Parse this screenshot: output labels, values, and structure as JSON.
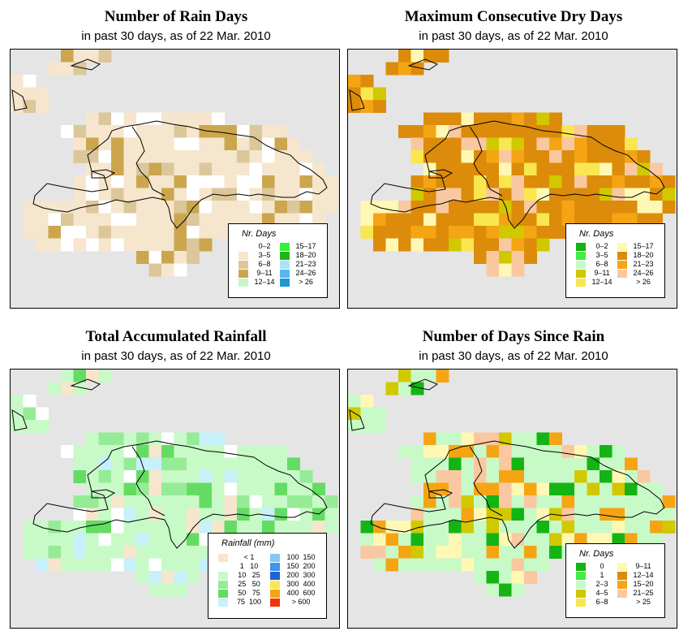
{
  "panels": [
    {
      "id": "rain-days",
      "title": "Number of Rain Days",
      "subtitle": "in past 30 days, as of  22 Mar. 2010",
      "legend": {
        "title": "Nr. Days",
        "columns": [
          [
            {
              "label": "0–2",
              "color": "#ffffff"
            },
            {
              "label": "3–5",
              "color": "#f5e6cd"
            },
            {
              "label": "6–8",
              "color": "#dcc79b"
            },
            {
              "label": "9–11",
              "color": "#cca64e"
            },
            {
              "label": "12–14",
              "color": "#c8f5c8"
            }
          ],
          [
            {
              "label": "15–17",
              "color": "#37f037"
            },
            {
              "label": "18–20",
              "color": "#1eb41e"
            },
            {
              "label": "21–23",
              "color": "#a8e4f5"
            },
            {
              "label": "24–26",
              "color": "#5ab4f0"
            },
            {
              "label": "> 26",
              "color": "#1e96d2"
            }
          ]
        ]
      }
    },
    {
      "id": "max-dry-days",
      "title": "Maximum Consecutive Dry Days",
      "subtitle": "in past 30 days, as of  22 Mar. 2010",
      "legend": {
        "title": "Nr. Days",
        "columns": [
          [
            {
              "label": "0–2",
              "color": "#14b414"
            },
            {
              "label": "3–5",
              "color": "#46eb46"
            },
            {
              "label": "6–8",
              "color": "#c8fac8"
            },
            {
              "label": "9–11",
              "color": "#d2c800"
            },
            {
              "label": "12–14",
              "color": "#fae650"
            }
          ],
          [
            {
              "label": "15–17",
              "color": "#fff8b4"
            },
            {
              "label": "18–20",
              "color": "#dc8c0a"
            },
            {
              "label": "21–23",
              "color": "#f5a514"
            },
            {
              "label": "24–26",
              "color": "#fac8a0"
            },
            {
              "label": "> 26",
              "color": "#ffffff"
            }
          ]
        ]
      }
    },
    {
      "id": "total-rainfall",
      "title": "Total Accumulated Rainfall",
      "subtitle": "in past 30 days, as of  22 Mar. 2010",
      "legend": {
        "title": "Rainfall (mm)",
        "columns": [
          [
            {
              "label": "< 1",
              "color": "#f5e6cd"
            },
            {
              "label": "1   10",
              "color": "#ffffff"
            },
            {
              "label": "10   25",
              "color": "#c8fac8"
            },
            {
              "label": "25   50",
              "color": "#96eb96"
            },
            {
              "label": "50   75",
              "color": "#64dc64"
            },
            {
              "label": "75  100",
              "color": "#c8f0fa"
            }
          ],
          [
            {
              "label": "100  150",
              "color": "#82c8f5"
            },
            {
              "label": "150  200",
              "color": "#3c96eb"
            },
            {
              "label": "200  300",
              "color": "#1e64d2"
            },
            {
              "label": "300  400",
              "color": "#fae650"
            },
            {
              "label": "400  600",
              "color": "#f5a514"
            },
            {
              "label": "> 600",
              "color": "#f5320a"
            }
          ]
        ]
      }
    },
    {
      "id": "days-since-rain",
      "title": "Number of Days Since Rain",
      "subtitle": "in past 30 days, as of  22 Mar. 2010",
      "legend": {
        "title": "Nr. Days",
        "columns": [
          [
            {
              "label": "0",
              "color": "#14b414"
            },
            {
              "label": "1",
              "color": "#46eb46"
            },
            {
              "label": "2–3",
              "color": "#c8fac8"
            },
            {
              "label": "4–5",
              "color": "#d2c800"
            },
            {
              "label": "6–8",
              "color": "#fae650"
            }
          ],
          [
            {
              "label": "9–11",
              "color": "#fff8b4"
            },
            {
              "label": "12–14",
              "color": "#dc8c0a"
            },
            {
              "label": "15–20",
              "color": "#f5a514"
            },
            {
              "label": "21–25",
              "color": "#fac8a0"
            },
            {
              "label": "> 25",
              "color": "#ffffff"
            }
          ]
        ]
      }
    }
  ]
}
